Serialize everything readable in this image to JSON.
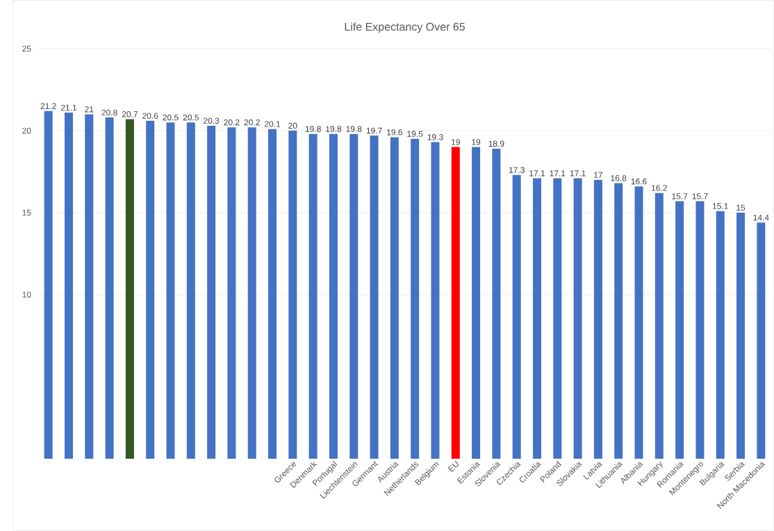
{
  "chart_data": [
    {
      "type": "bar",
      "title": "Life Expectancy Over 65",
      "categories": [
        null,
        null,
        null,
        null,
        null,
        null,
        null,
        null,
        null,
        null,
        null,
        null,
        "Greece",
        "Denmark",
        "Portugal",
        "Liechtenstein",
        "Germant",
        "Austria",
        "Netherlands",
        "Belgium",
        "EU",
        "Estonia",
        "Slovenia",
        "Czechia",
        "Croatia",
        "Poland",
        "Slovakia",
        "Latvia",
        "Lithuania",
        "Albania",
        "Hungary",
        "Romania",
        "Montenegro",
        "Bulgaria",
        "Serbia",
        "North Macedonia"
      ],
      "values": [
        21.2,
        21.1,
        21,
        20.8,
        20.7,
        20.6,
        20.5,
        20.5,
        20.3,
        20.2,
        20.2,
        20.1,
        20,
        19.8,
        19.8,
        19.8,
        19.7,
        19.6,
        19.5,
        19.3,
        19,
        19,
        18.9,
        17.3,
        17.1,
        17.1,
        17.1,
        17,
        16.8,
        16.6,
        16.2,
        15.7,
        15.7,
        15.1,
        15,
        14.4
      ],
      "colors": [
        "#4472c4",
        "#4472c4",
        "#4472c4",
        "#4472c4",
        "#375623",
        "#4472c4",
        "#4472c4",
        "#4472c4",
        "#4472c4",
        "#4472c4",
        "#4472c4",
        "#4472c4",
        "#4472c4",
        "#4472c4",
        "#4472c4",
        "#4472c4",
        "#4472c4",
        "#4472c4",
        "#4472c4",
        "#4472c4",
        "#ff0000",
        "#4472c4",
        "#4472c4",
        "#4472c4",
        "#4472c4",
        "#4472c4",
        "#4472c4",
        "#4472c4",
        "#4472c4",
        "#4472c4",
        "#4472c4",
        "#4472c4",
        "#4472c4",
        "#4472c4",
        "#4472c4",
        "#4472c4"
      ],
      "ylim": [
        0,
        25
      ],
      "yticks": [
        10,
        15,
        20,
        25
      ],
      "grid": "y",
      "data_labels": true
    }
  ]
}
